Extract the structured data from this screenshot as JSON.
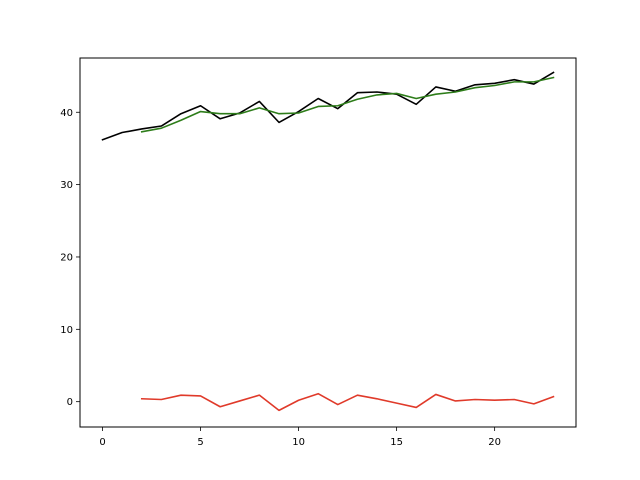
{
  "chart_data": {
    "type": "line",
    "title": "",
    "xlabel": "",
    "ylabel": "",
    "xlim": [
      -1.15,
      24.15
    ],
    "ylim": [
      -3.5,
      47.5
    ],
    "x_ticks": [
      0,
      5,
      10,
      15,
      20
    ],
    "y_ticks": [
      0,
      10,
      20,
      30,
      40
    ],
    "grid": false,
    "legend": "none",
    "series": [
      {
        "color": "#000000",
        "x": [
          0,
          1,
          2,
          3,
          4,
          5,
          6,
          7,
          8,
          9,
          10,
          11,
          12,
          13,
          14,
          15,
          16,
          17,
          18,
          19,
          20,
          21,
          22,
          23
        ],
        "y": [
          36.2,
          37.2,
          37.7,
          38.1,
          39.8,
          40.9,
          39.1,
          39.9,
          41.5,
          38.6,
          40.1,
          41.9,
          40.5,
          42.7,
          42.8,
          42.5,
          41.1,
          43.5,
          42.9,
          43.8,
          44.0,
          44.5,
          43.9,
          45.5
        ]
      },
      {
        "color": "#2e7d1a",
        "x": [
          2,
          3,
          4,
          5,
          6,
          7,
          8,
          9,
          10,
          11,
          12,
          13,
          14,
          15,
          16,
          17,
          18,
          19,
          20,
          21,
          22,
          23
        ],
        "y": [
          37.3,
          37.8,
          38.9,
          40.1,
          39.8,
          39.8,
          40.6,
          39.8,
          39.9,
          40.8,
          40.9,
          41.8,
          42.4,
          42.6,
          41.9,
          42.5,
          42.8,
          43.4,
          43.7,
          44.2,
          44.2,
          44.8
        ]
      },
      {
        "color": "#e03a2a",
        "x": [
          2,
          3,
          4,
          5,
          6,
          7,
          8,
          9,
          10,
          11,
          12,
          13,
          14,
          15,
          16,
          17,
          18,
          19,
          20,
          21,
          22,
          23
        ],
        "y": [
          0.4,
          0.3,
          0.9,
          0.8,
          -0.7,
          0.1,
          0.9,
          -1.2,
          0.2,
          1.1,
          -0.4,
          0.9,
          0.4,
          -0.2,
          -0.8,
          1.0,
          0.1,
          0.3,
          0.2,
          0.3,
          -0.3,
          0.7
        ]
      }
    ]
  }
}
